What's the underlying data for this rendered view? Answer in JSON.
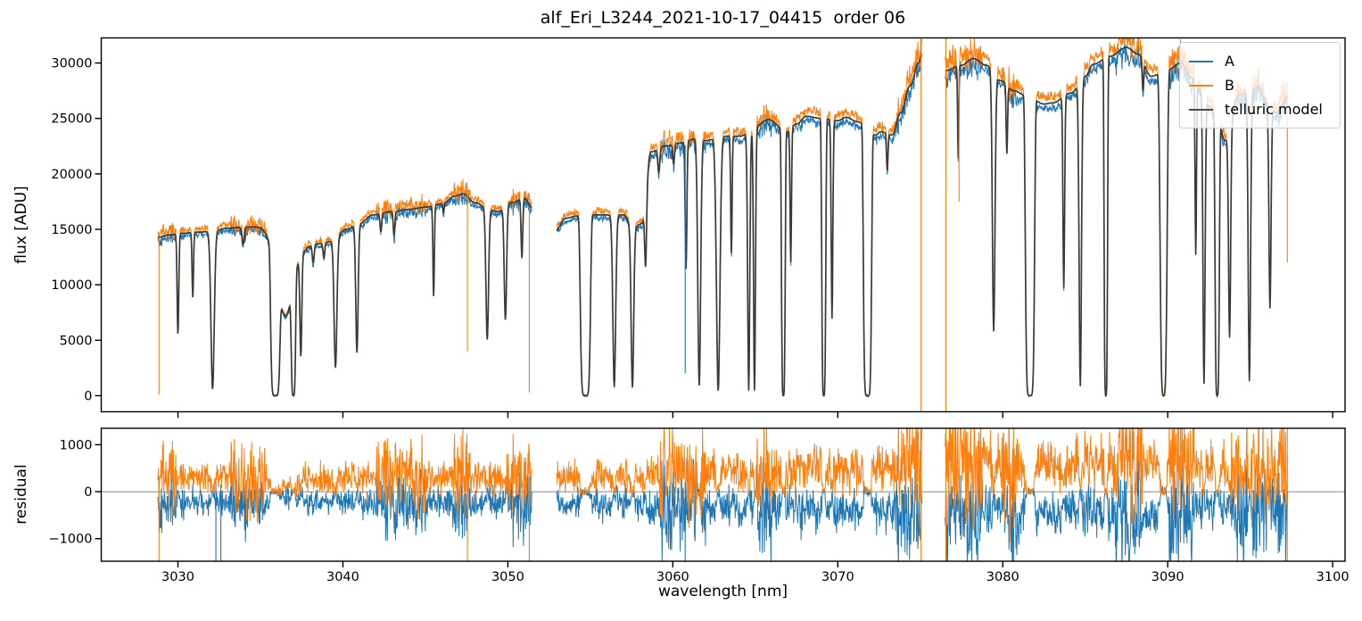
{
  "chart_data": {
    "type": "line",
    "title": "alf_Eri_L3244_2021-10-17_04415  order 06",
    "xlabel": "wavelength [nm]",
    "ylabel_top": "flux [ADU]",
    "ylabel_bottom": "residual",
    "legend": [
      {
        "label": "A",
        "color": "#1f77b4"
      },
      {
        "label": "B",
        "color": "#ff7f0e"
      },
      {
        "label": "telluric model",
        "color": "#4a4a4a"
      }
    ],
    "colors": {
      "A": "#1f77b4",
      "B": "#ff7f0e",
      "model": "#3d3a36",
      "zero_line": "#8a8a8a",
      "frame": "#000000"
    },
    "axes": {
      "xlim": [
        3025.35,
        3100.75
      ],
      "flux_ylim": [
        -1450,
        32260
      ],
      "residual_ylim": [
        -1480,
        1350
      ],
      "xticks": [
        {
          "v": 3030,
          "label": "3030"
        },
        {
          "v": 3040,
          "label": "3040"
        },
        {
          "v": 3050,
          "label": "3050"
        },
        {
          "v": 3060,
          "label": "3060"
        },
        {
          "v": 3070,
          "label": "3070"
        },
        {
          "v": 3080,
          "label": "3080"
        },
        {
          "v": 3090,
          "label": "3090"
        },
        {
          "v": 3100,
          "label": "3100"
        }
      ],
      "yticks_top": [
        {
          "v": 0,
          "label": "0"
        },
        {
          "v": 5000,
          "label": "5000"
        },
        {
          "v": 10000,
          "label": "10000"
        },
        {
          "v": 15000,
          "label": "15000"
        },
        {
          "v": 20000,
          "label": "20000"
        },
        {
          "v": 25000,
          "label": "25000"
        },
        {
          "v": 30000,
          "label": "30000"
        }
      ],
      "yticks_bottom": [
        {
          "v": -1000,
          "label": "−1000"
        },
        {
          "v": 0,
          "label": "0"
        },
        {
          "v": 1000,
          "label": "1000"
        }
      ]
    },
    "segments": [
      [
        3028.77,
        3051.45
      ],
      [
        3052.95,
        3075.12
      ],
      [
        3076.5,
        3097.3
      ]
    ],
    "sampling_step": 0.025,
    "continuum": [
      [
        3028.8,
        14300
      ],
      [
        3029.5,
        14500
      ],
      [
        3030.3,
        14650
      ],
      [
        3031.2,
        14750
      ],
      [
        3032.0,
        14800
      ],
      [
        3033.0,
        15100
      ],
      [
        3034.0,
        15200
      ],
      [
        3035.0,
        15250
      ],
      [
        3036.0,
        15200
      ],
      [
        3037.0,
        14800
      ],
      [
        3037.8,
        13600
      ],
      [
        3038.6,
        13700
      ],
      [
        3039.3,
        13900
      ],
      [
        3040.2,
        15000
      ],
      [
        3041.0,
        15500
      ],
      [
        3041.8,
        16300
      ],
      [
        3043.0,
        16600
      ],
      [
        3044.0,
        16800
      ],
      [
        3045.0,
        17000
      ],
      [
        3046.0,
        17300
      ],
      [
        3046.8,
        18000
      ],
      [
        3047.3,
        18200
      ],
      [
        3048.0,
        17400
      ],
      [
        3049.0,
        16700
      ],
      [
        3049.4,
        16600
      ],
      [
        3050.2,
        17400
      ],
      [
        3051.0,
        17800
      ],
      [
        3051.45,
        17000
      ],
      [
        3052.95,
        15000
      ],
      [
        3053.5,
        16000
      ],
      [
        3054.2,
        16200
      ],
      [
        3055.0,
        16300
      ],
      [
        3055.8,
        16300
      ],
      [
        3056.5,
        16300
      ],
      [
        3057.0,
        16300
      ],
      [
        3057.6,
        15200
      ],
      [
        3058.1,
        15500
      ],
      [
        3058.7,
        22000
      ],
      [
        3059.5,
        22500
      ],
      [
        3060.5,
        22800
      ],
      [
        3061.5,
        23200
      ],
      [
        3062.0,
        23000
      ],
      [
        3063.0,
        23400
      ],
      [
        3064.1,
        23400
      ],
      [
        3065.0,
        24300
      ],
      [
        3065.8,
        24900
      ],
      [
        3066.9,
        23800
      ],
      [
        3067.5,
        24500
      ],
      [
        3068.1,
        25200
      ],
      [
        3069.0,
        25000
      ],
      [
        3070.0,
        24800
      ],
      [
        3070.5,
        25100
      ],
      [
        3071.2,
        24700
      ],
      [
        3072.3,
        23500
      ],
      [
        3072.6,
        23800
      ],
      [
        3073.3,
        23500
      ],
      [
        3073.8,
        25500
      ],
      [
        3074.4,
        28000
      ],
      [
        3074.9,
        30000
      ],
      [
        3075.1,
        30800
      ],
      [
        3076.5,
        29300
      ],
      [
        3077.5,
        29800
      ],
      [
        3078.2,
        30400
      ],
      [
        3079.0,
        29800
      ],
      [
        3079.9,
        28400
      ],
      [
        3080.65,
        27500
      ],
      [
        3081.5,
        27000
      ],
      [
        3082.5,
        26300
      ],
      [
        3083.0,
        26400
      ],
      [
        3084.15,
        27300
      ],
      [
        3085.0,
        28800
      ],
      [
        3085.5,
        29900
      ],
      [
        3086.5,
        30600
      ],
      [
        3087.5,
        31400
      ],
      [
        3088.2,
        30800
      ],
      [
        3089.0,
        28800
      ],
      [
        3090.0,
        29400
      ],
      [
        3090.8,
        30000
      ],
      [
        3091.5,
        28600
      ],
      [
        3092.0,
        27600
      ],
      [
        3092.55,
        26100
      ],
      [
        3093.1,
        24600
      ],
      [
        3093.45,
        23000
      ],
      [
        3094.35,
        27100
      ],
      [
        3095.0,
        27400
      ],
      [
        3095.45,
        27900
      ],
      [
        3096.0,
        26500
      ],
      [
        3096.6,
        25500
      ],
      [
        3097.3,
        27000
      ]
    ],
    "absorption_lines": [
      [
        3030.0,
        0.62,
        0.07,
        2
      ],
      [
        3030.9,
        0.4,
        0.06,
        2
      ],
      [
        3032.1,
        0.96,
        0.14,
        2
      ],
      [
        3033.95,
        0.1,
        0.1,
        2
      ],
      [
        3035.9,
        1.0,
        0.3,
        6
      ],
      [
        3036.5,
        0.52,
        0.75,
        2
      ],
      [
        3037.0,
        1.0,
        0.15,
        4
      ],
      [
        3037.45,
        0.72,
        0.08,
        2
      ],
      [
        3038.2,
        0.12,
        0.08,
        2
      ],
      [
        3038.85,
        0.1,
        0.07,
        2
      ],
      [
        3039.55,
        0.82,
        0.12,
        2
      ],
      [
        3040.85,
        0.75,
        0.1,
        2
      ],
      [
        3042.3,
        0.1,
        0.07,
        2
      ],
      [
        3043.1,
        0.13,
        0.07,
        2
      ],
      [
        3045.5,
        0.48,
        0.06,
        2
      ],
      [
        3046.1,
        0.05,
        0.05,
        2
      ],
      [
        3048.75,
        0.7,
        0.11,
        2
      ],
      [
        3049.85,
        0.6,
        0.1,
        2
      ],
      [
        3050.85,
        0.3,
        0.07,
        2
      ],
      [
        3054.7,
        1.0,
        0.33,
        6
      ],
      [
        3056.45,
        0.95,
        0.12,
        2
      ],
      [
        3057.55,
        0.95,
        0.11,
        2
      ],
      [
        3058.35,
        0.35,
        0.08,
        2
      ],
      [
        3059.15,
        0.1,
        0.08,
        2
      ],
      [
        3060.05,
        0.08,
        0.07,
        2
      ],
      [
        3060.8,
        0.5,
        0.07,
        2
      ],
      [
        3061.6,
        0.96,
        0.12,
        2
      ],
      [
        3062.75,
        0.98,
        0.15,
        2
      ],
      [
        3063.55,
        0.45,
        0.06,
        2
      ],
      [
        3064.6,
        0.98,
        0.09,
        2
      ],
      [
        3064.95,
        0.98,
        0.08,
        2
      ],
      [
        3066.7,
        1.0,
        0.13,
        4
      ],
      [
        3067.15,
        0.5,
        0.06,
        2
      ],
      [
        3069.15,
        1.0,
        0.14,
        4
      ],
      [
        3069.65,
        0.72,
        0.07,
        2
      ],
      [
        3071.8,
        1.0,
        0.27,
        6
      ],
      [
        3073.0,
        0.14,
        0.06,
        2
      ],
      [
        3077.3,
        0.28,
        0.05,
        2
      ],
      [
        3079.45,
        0.8,
        0.11,
        2
      ],
      [
        3080.25,
        0.22,
        0.06,
        2
      ],
      [
        3081.65,
        1.0,
        0.3,
        6
      ],
      [
        3083.7,
        0.64,
        0.07,
        2
      ],
      [
        3084.7,
        0.97,
        0.1,
        2
      ],
      [
        3086.25,
        1.0,
        0.12,
        4
      ],
      [
        3088.5,
        0.09,
        0.06,
        2
      ],
      [
        3089.75,
        1.0,
        0.24,
        4
      ],
      [
        3091.7,
        0.55,
        0.06,
        2
      ],
      [
        3092.2,
        0.96,
        0.09,
        2
      ],
      [
        3093.0,
        1.0,
        0.15,
        4
      ],
      [
        3093.75,
        0.78,
        0.09,
        2
      ],
      [
        3094.95,
        0.95,
        0.1,
        2
      ],
      [
        3096.2,
        0.7,
        0.09,
        2
      ]
    ],
    "noise": {
      "seed": 42,
      "base": 90,
      "flux_coeff": 0.014,
      "a_offset": -0.016,
      "b_offset": 0.02,
      "b_factor": 1.15,
      "burst_factor": 2.2,
      "burst_zones": [
        [
          3028.8,
          3029.9
        ],
        [
          3033.2,
          3035.3
        ],
        [
          3042.0,
          3045.0
        ],
        [
          3046.6,
          3047.7
        ],
        [
          3049.8,
          3051.5
        ],
        [
          3059.2,
          3062.0
        ],
        [
          3064.9,
          3066.3
        ],
        [
          3073.5,
          3075.2
        ],
        [
          3076.4,
          3078.8
        ],
        [
          3079.9,
          3081.0
        ],
        [
          3086.8,
          3088.5
        ],
        [
          3090.1,
          3091.6
        ],
        [
          3093.8,
          3097.4
        ]
      ]
    },
    "spikes_flux": [
      [
        3028.85,
        100,
        14200,
        "B"
      ],
      [
        3047.55,
        4000,
        18100,
        "B"
      ],
      [
        3051.3,
        300,
        17000,
        "B"
      ],
      [
        3060.75,
        2000,
        22600,
        "A"
      ],
      [
        3075.05,
        -1450,
        32260,
        "B"
      ],
      [
        3076.55,
        -1450,
        32260,
        "B"
      ],
      [
        3077.35,
        17500,
        29300,
        "B"
      ],
      [
        3097.25,
        12000,
        28300,
        "B"
      ]
    ],
    "spikes_residual": [
      [
        3028.85,
        -1480,
        300,
        "B"
      ],
      [
        3032.3,
        -1480,
        200,
        "A"
      ],
      [
        3032.6,
        -1480,
        150,
        "A"
      ],
      [
        3047.55,
        -1480,
        400,
        "B"
      ],
      [
        3051.3,
        -1480,
        250,
        "B"
      ],
      [
        3060.75,
        -1480,
        200,
        "A"
      ],
      [
        3075.05,
        -1480,
        1350,
        "B"
      ],
      [
        3076.55,
        -1480,
        1350,
        "B"
      ],
      [
        3096.9,
        0,
        1350,
        "B"
      ],
      [
        3097.25,
        -1480,
        1350,
        "B"
      ]
    ]
  }
}
